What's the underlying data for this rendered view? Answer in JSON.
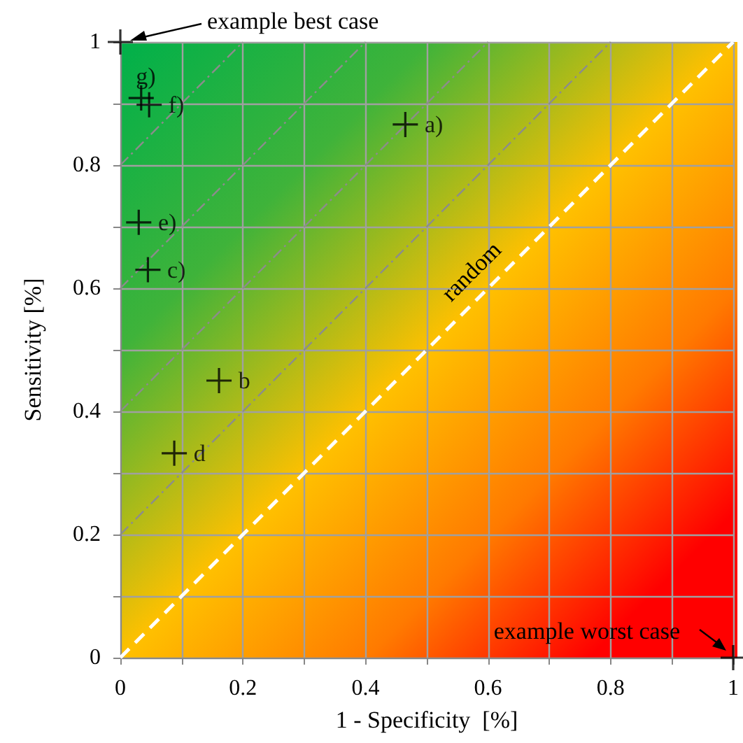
{
  "chart_data": {
    "type": "scatter",
    "xlabel": "1 - Specificity  [%]",
    "ylabel": "Sensitivity [%]",
    "xlim": [
      0,
      1
    ],
    "ylim": [
      0,
      1
    ],
    "xticks": [
      0,
      {
        "value": 0.1,
        "label": null
      },
      0.2,
      {
        "value": 0.3,
        "label": null
      },
      0.4,
      {
        "value": 0.5,
        "label": null
      },
      0.6,
      {
        "value": 0.7,
        "label": null
      },
      0.8,
      {
        "value": 0.9,
        "label": null
      },
      1
    ],
    "yticks": [
      0,
      {
        "value": 0.1,
        "label": null
      },
      0.2,
      {
        "value": 0.3,
        "label": null
      },
      0.4,
      {
        "value": 0.5,
        "label": null
      },
      0.6,
      {
        "value": 0.7,
        "label": null
      },
      0.8,
      {
        "value": 0.9,
        "label": null
      },
      1
    ],
    "grid": true,
    "marker": "cross",
    "series": [
      {
        "type": "line",
        "marker": "none",
        "color": "#8c8c8c",
        "line_style": "dashed",
        "x": [
          0,
          0.8
        ],
        "values": [
          0.2,
          1
        ]
      },
      {
        "type": "line",
        "marker": "none",
        "color": "#8c8c8c",
        "line_style": "dashed",
        "x": [
          0,
          0.6
        ],
        "values": [
          0.4,
          1
        ]
      },
      {
        "type": "line",
        "marker": "none",
        "color": "#8c8c8c",
        "line_style": "dashed",
        "x": [
          0,
          0.4
        ],
        "values": [
          0.6,
          1
        ]
      },
      {
        "type": "line",
        "marker": "none",
        "color": "#8c8c8c",
        "line_style": "dashed",
        "x": [
          0,
          0.2
        ],
        "values": [
          0.8,
          1
        ]
      },
      {
        "type": "line",
        "marker": "none",
        "color": "#ffffff",
        "line_style": "dashed",
        "x": [
          0,
          1
        ],
        "values": [
          0,
          1
        ]
      },
      {
        "color": "#000000",
        "x": [
          0.465,
          0.161,
          0.045,
          0.088,
          0.03,
          0.047,
          0.034,
          0,
          1
        ],
        "values": [
          0.866,
          0.45,
          0.63,
          0.332,
          0.707,
          0.898,
          0.909,
          1,
          0
        ],
        "value_labels": [
          "a)",
          "b",
          "c)",
          "d",
          "e)",
          "f)",
          "g)",
          null,
          null
        ]
      }
    ],
    "annotations": [
      "example best case",
      "example worst case",
      {
        "text": "random",
        "x": 0.6,
        "y": 0.6
      }
    ]
  }
}
